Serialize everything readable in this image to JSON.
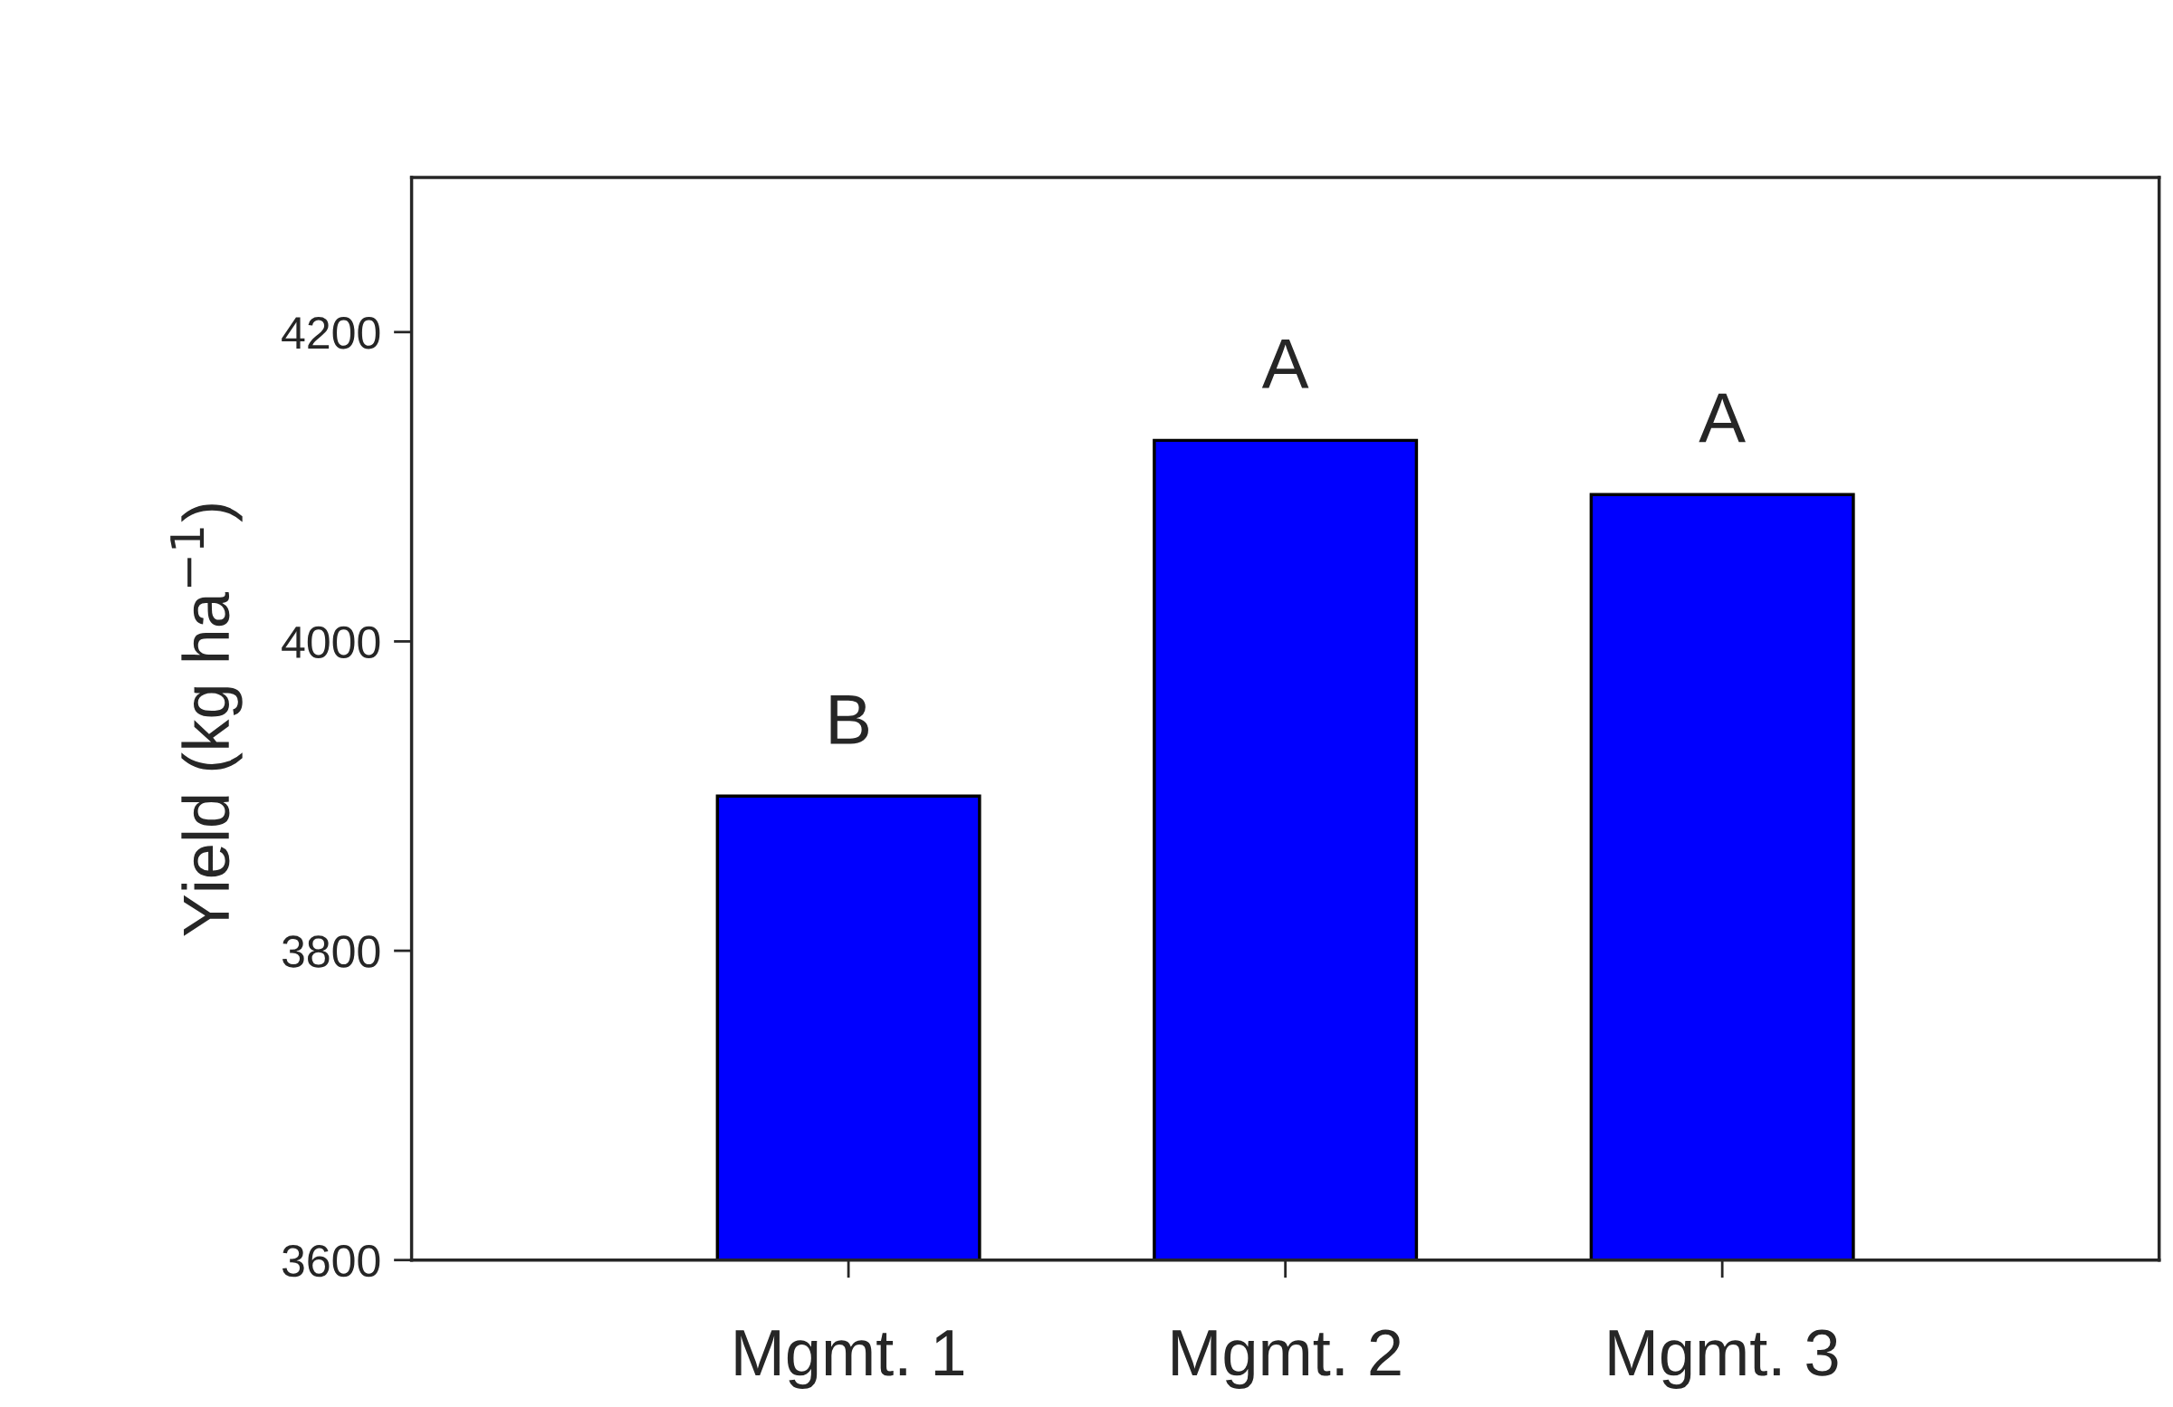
{
  "chart_data": {
    "type": "bar",
    "ylabel": "Yield (kg ha$^{−1}$)",
    "categories": [
      "Mgmt. 1",
      "Mgmt. 2",
      "Mgmt. 3"
    ],
    "values": [
      3900,
      4130,
      4095
    ],
    "color": "#0000ff",
    "ylim": [
      3600,
      4300
    ],
    "yticks": [
      3600,
      3800,
      4000,
      4200
    ],
    "annotations": [
      {
        "text": "B",
        "x": "Mgmt. 1",
        "y": 3900
      },
      {
        "text": "A",
        "x": "Mgmt. 2",
        "y": 4130
      },
      {
        "text": "A",
        "x": "Mgmt. 3",
        "y": 4095
      }
    ],
    "grid": false
  }
}
